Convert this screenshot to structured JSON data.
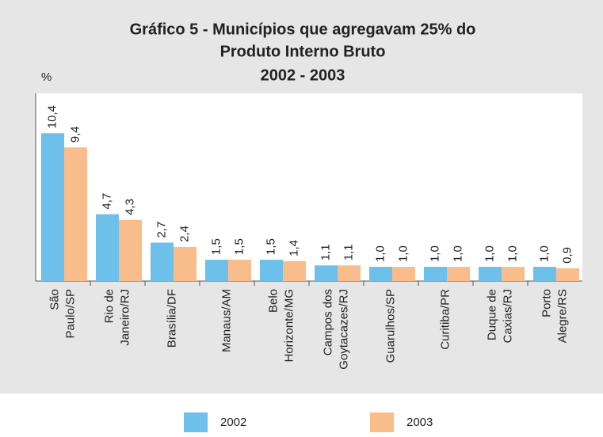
{
  "chart_data": {
    "type": "bar",
    "title": [
      "Gráfico 5 - Municípios que agregavam 25% do",
      "Produto Interno Bruto"
    ],
    "subtitle": "2002 - 2003",
    "y_label": "%",
    "categories": [
      [
        "São",
        "Paulo/SP"
      ],
      [
        "Rio de",
        "Janeiro/RJ"
      ],
      [
        "Brasília/DF"
      ],
      [
        "Manaus/AM"
      ],
      [
        "Belo",
        "Horizonte/MG"
      ],
      [
        "Campos dos",
        "Goytacazes/RJ"
      ],
      [
        "Guarulhos/SP"
      ],
      [
        "Curitiba/PR"
      ],
      [
        "Duque de",
        "Caxias/RJ"
      ],
      [
        "Porto",
        "Alegre/RS"
      ]
    ],
    "series": [
      {
        "name": "2002",
        "color": "#6cc0ea",
        "values": [
          10.4,
          4.7,
          2.7,
          1.5,
          1.5,
          1.1,
          1.0,
          1.0,
          1.0,
          1.0
        ],
        "value_labels": [
          "10,4",
          "4,7",
          "2,7",
          "1,5",
          "1,5",
          "1,1",
          "1,0",
          "1,0",
          "1,0",
          "1,0"
        ]
      },
      {
        "name": "2003",
        "color": "#f9bd8b",
        "values": [
          9.4,
          4.3,
          2.4,
          1.5,
          1.4,
          1.1,
          1.0,
          1.0,
          1.0,
          0.9
        ],
        "value_labels": [
          "9,4",
          "4,3",
          "2,4",
          "1,5",
          "1,4",
          "1,1",
          "1,0",
          "1,0",
          "1,0",
          "0,9"
        ]
      }
    ],
    "ylim": [
      0,
      13.2
    ]
  }
}
